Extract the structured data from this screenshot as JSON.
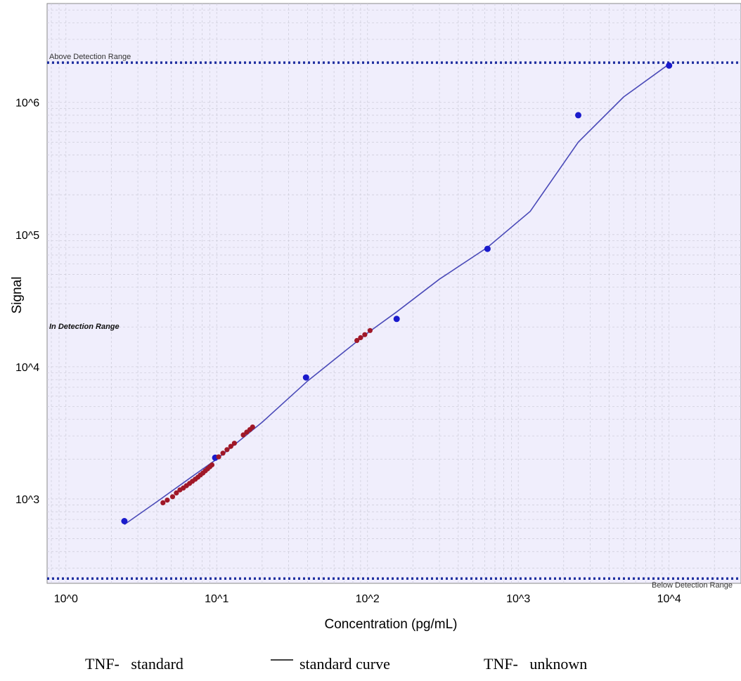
{
  "chart_data": {
    "type": "scatter",
    "title": "",
    "xlabel": "Concentration (pg/mL)",
    "ylabel": "Signal",
    "x_scale": "log",
    "y_scale": "log",
    "xlim": [
      0.75,
      30000
    ],
    "ylim": [
      230,
      5600000
    ],
    "x_ticks": [
      {
        "value": 1,
        "label": "10^0"
      },
      {
        "value": 10,
        "label": "10^1"
      },
      {
        "value": 100,
        "label": "10^2"
      },
      {
        "value": 1000,
        "label": "10^3"
      },
      {
        "value": 10000,
        "label": "10^4"
      }
    ],
    "y_ticks": [
      {
        "value": 1000,
        "label": "10^3"
      },
      {
        "value": 10000,
        "label": "10^4"
      },
      {
        "value": 100000,
        "label": "10^5"
      },
      {
        "value": 1000000,
        "label": "10^6"
      }
    ],
    "grid": true,
    "detection_range": {
      "upper": 2000000,
      "lower": 250,
      "upper_label": "Above Detection Range",
      "middle_label": "In Detection Range",
      "lower_label": "Below Detection Range"
    },
    "series": [
      {
        "name": "TNF-   standard",
        "kind": "points",
        "color": "#1a1acc",
        "x": [
          2.44,
          9.77,
          39.1,
          156,
          625,
          2500,
          10000
        ],
        "y": [
          680,
          2050,
          8300,
          23000,
          78000,
          800000,
          1900000
        ]
      },
      {
        "name": "standard curve",
        "kind": "line",
        "color": "#4a4ab8",
        "x": [
          2.44,
          4,
          7,
          10,
          20,
          40,
          100,
          156,
          300,
          625,
          1200,
          2500,
          5000,
          10000
        ],
        "y": [
          640,
          950,
          1500,
          2000,
          3800,
          7800,
          18000,
          26000,
          46000,
          80000,
          150000,
          500000,
          1100000,
          1950000
        ]
      },
      {
        "name": "TNF-   unknown",
        "kind": "points",
        "color": "#a01828",
        "x": [
          4.4,
          4.7,
          5.1,
          5.4,
          5.7,
          6.0,
          6.3,
          6.6,
          6.9,
          7.2,
          7.5,
          7.8,
          8.1,
          8.4,
          8.7,
          9.0,
          9.3,
          10.3,
          11.0,
          11.7,
          12.4,
          13.1,
          15.0,
          15.8,
          16.6,
          17.3,
          85,
          90,
          96,
          104
        ],
        "y": [
          935,
          980,
          1040,
          1110,
          1170,
          1210,
          1260,
          1310,
          1360,
          1410,
          1460,
          1520,
          1570,
          1630,
          1690,
          1750,
          1810,
          2080,
          2220,
          2360,
          2500,
          2640,
          3050,
          3200,
          3350,
          3500,
          15800,
          16600,
          17500,
          18800
        ]
      }
    ],
    "legend": {
      "position": "bottom",
      "items": [
        "TNF-   standard",
        "standard curve",
        "TNF-   unknown"
      ]
    }
  }
}
